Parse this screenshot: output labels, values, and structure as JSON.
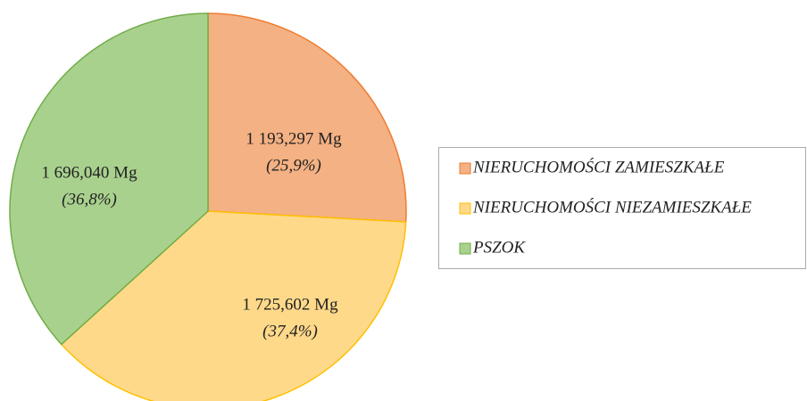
{
  "chart_data": {
    "type": "pie",
    "categories": [
      "NIERUCHOMOŚCI ZAMIESZKAŁE",
      "NIERUCHOMOŚCI NIEZAMIESZKAŁE",
      "PSZOK"
    ],
    "values": [
      1193.297,
      1725.602,
      1696.04
    ],
    "value_labels": [
      "1 193,297 Mg",
      "1 725,602 Mg",
      "1 696,040 Mg"
    ],
    "percents": [
      25.9,
      37.4,
      36.8
    ],
    "percent_labels": [
      "(25,9%)",
      "(37,4%)",
      "(36,8%)"
    ],
    "colors": [
      "#f4b183",
      "#ffd98a",
      "#a9d18e"
    ],
    "edge_colors": [
      "#ed7d31",
      "#ffc000",
      "#70ad47"
    ],
    "legend": "right"
  }
}
